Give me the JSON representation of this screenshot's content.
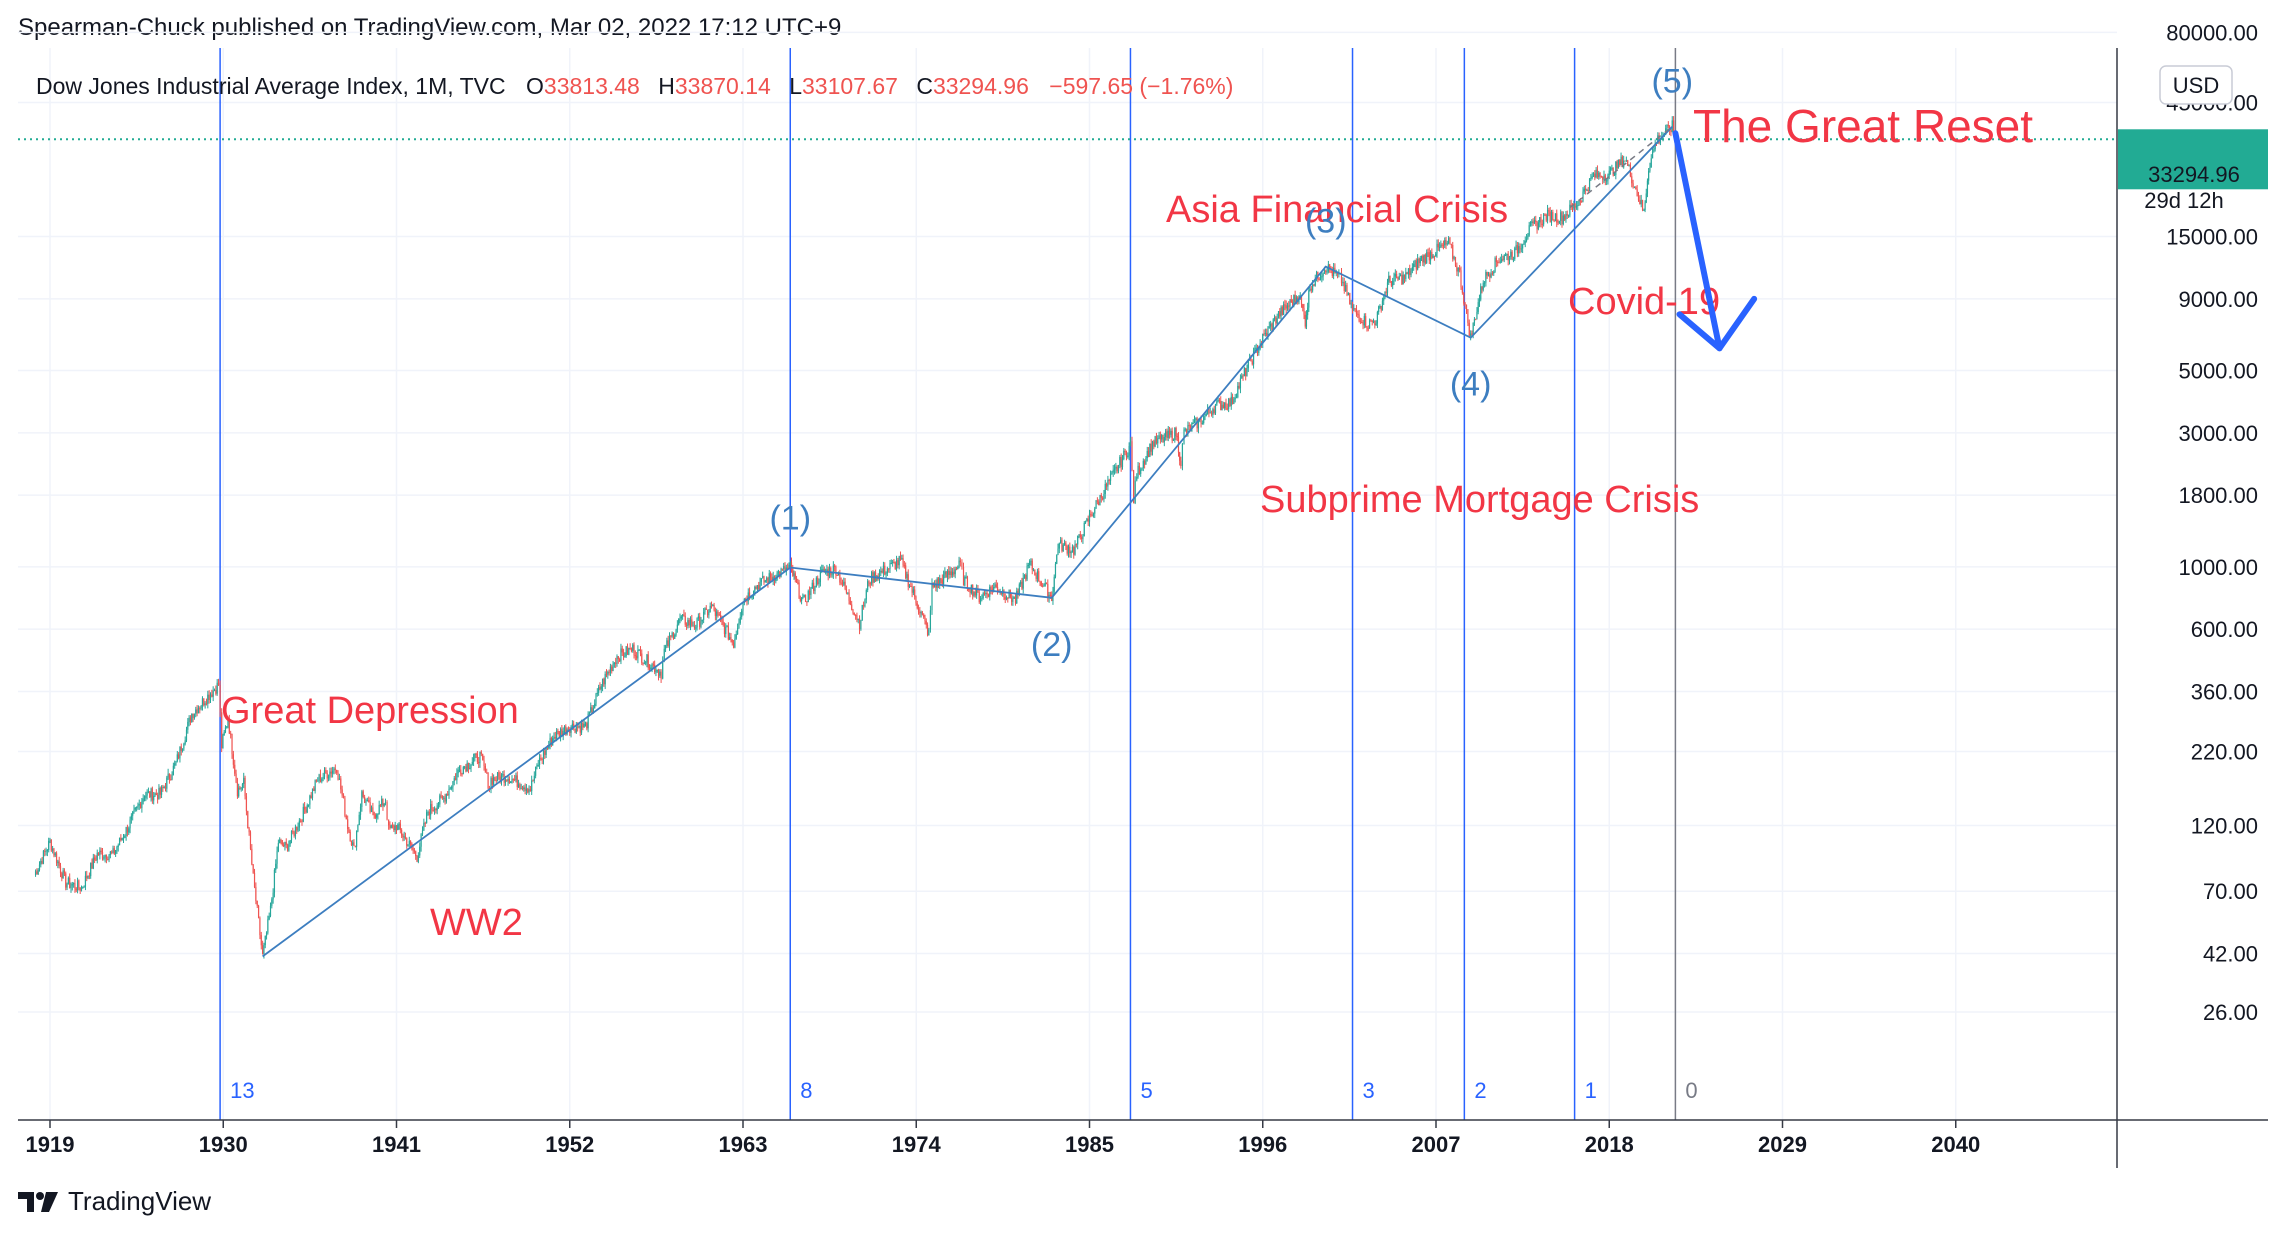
{
  "publish_line": "Spearman-Chuck published on TradingView.com, Mar 02, 2022 17:12 UTC+9",
  "brand": {
    "name": "TradingView"
  },
  "header": {
    "symbol": "Dow Jones Industrial Average Index, 1M, TVC",
    "o_label": "O",
    "o_value": "33813.48",
    "h_label": "H",
    "h_value": "33870.14",
    "l_label": "L",
    "l_value": "33107.67",
    "c_label": "C",
    "c_value": "33294.96",
    "change": "−597.65 (−1.76%)"
  },
  "currency": "USD",
  "price_tag": {
    "value": "33294.96",
    "countdown": "29d 12h"
  },
  "colors": {
    "background": "#ffffff",
    "up": "#26a69a",
    "down": "#ef5350",
    "annotation": "#f23645",
    "cycle_line": "#2962ff",
    "wave_label": "#3d7ec0",
    "price_tag": "#22ab94",
    "arrow": "#2962ff",
    "grid": "#f0f3fa"
  },
  "chart_data": {
    "type": "candlestick",
    "title": "Dow Jones Industrial Average Index, 1M, TVC",
    "y_scale": "log",
    "x_range": [
      1917.5,
      2049
    ],
    "y_range": [
      20,
      90000
    ],
    "x_ticks": [
      "1919",
      "1930",
      "1941",
      "1952",
      "1963",
      "1974",
      "1985",
      "1996",
      "2007",
      "2018",
      "2029",
      "2040"
    ],
    "y_ticks": [
      "80000.00",
      "45000.00",
      "15000.00",
      "9000.00",
      "5000.00",
      "3000.00",
      "1800.00",
      "1000.00",
      "600.00",
      "360.00",
      "220.00",
      "120.00",
      "70.00",
      "42.00",
      "26.00"
    ],
    "grid": true,
    "last_close": 33294.96,
    "series": [
      {
        "kind": "monthly-ohlc-approx",
        "points": [
          [
            1918,
            80
          ],
          [
            1919,
            105
          ],
          [
            1920,
            75
          ],
          [
            1921,
            72
          ],
          [
            1922,
            95
          ],
          [
            1923,
            95
          ],
          [
            1924,
            120
          ],
          [
            1925,
            155
          ],
          [
            1926,
            155
          ],
          [
            1927,
            200
          ],
          [
            1928,
            300
          ],
          [
            1929.7,
            381
          ],
          [
            1929.9,
            230
          ],
          [
            1930.3,
            290
          ],
          [
            1930.9,
            160
          ],
          [
            1931.3,
            170
          ],
          [
            1931.9,
            78
          ],
          [
            1932.5,
            41
          ],
          [
            1933,
            60
          ],
          [
            1933.5,
            105
          ],
          [
            1934,
            100
          ],
          [
            1935,
            130
          ],
          [
            1936,
            175
          ],
          [
            1937.2,
            194
          ],
          [
            1937.9,
            120
          ],
          [
            1938.3,
            98
          ],
          [
            1938.8,
            155
          ],
          [
            1939.5,
            130
          ],
          [
            1940.3,
            148
          ],
          [
            1940.5,
            115
          ],
          [
            1941,
            120
          ],
          [
            1942.3,
            93
          ],
          [
            1943,
            135
          ],
          [
            1944,
            150
          ],
          [
            1945,
            190
          ],
          [
            1946.3,
            212
          ],
          [
            1946.9,
            165
          ],
          [
            1947,
            175
          ],
          [
            1948,
            180
          ],
          [
            1949.5,
            162
          ],
          [
            1950,
            200
          ],
          [
            1951,
            250
          ],
          [
            1952,
            270
          ],
          [
            1953,
            270
          ],
          [
            1954,
            380
          ],
          [
            1955,
            480
          ],
          [
            1956,
            510
          ],
          [
            1957.8,
            420
          ],
          [
            1958,
            500
          ],
          [
            1959,
            650
          ],
          [
            1960,
            620
          ],
          [
            1961,
            720
          ],
          [
            1962.4,
            535
          ],
          [
            1963,
            760
          ],
          [
            1964,
            870
          ],
          [
            1966.0,
            995
          ],
          [
            1966.8,
            744
          ],
          [
            1968,
            950
          ],
          [
            1968.9,
            985
          ],
          [
            1970.4,
            631
          ],
          [
            1971,
            900
          ],
          [
            1973.0,
            1051
          ],
          [
            1974.8,
            577
          ],
          [
            1975,
            850
          ],
          [
            1976.8,
            1014
          ],
          [
            1977,
            900
          ],
          [
            1978,
            780
          ],
          [
            1979,
            850
          ],
          [
            1980.3,
            760
          ],
          [
            1981.2,
            1024
          ],
          [
            1982.6,
            776
          ],
          [
            1983,
            1200
          ],
          [
            1984,
            1150
          ],
          [
            1985,
            1500
          ],
          [
            1986,
            1900
          ],
          [
            1987.6,
            2722
          ],
          [
            1987.8,
            1740
          ],
          [
            1988,
            2150
          ],
          [
            1989,
            2750
          ],
          [
            1990.5,
            2999
          ],
          [
            1990.8,
            2365
          ],
          [
            1991,
            3000
          ],
          [
            1992,
            3300
          ],
          [
            1993,
            3750
          ],
          [
            1994,
            3850
          ],
          [
            1995,
            5100
          ],
          [
            1996,
            6500
          ],
          [
            1997,
            7900
          ],
          [
            1998.3,
            9300
          ],
          [
            1998.7,
            7500
          ],
          [
            1999,
            10000
          ],
          [
            2000.0,
            11723
          ],
          [
            2001,
            10500
          ],
          [
            2001.7,
            8235
          ],
          [
            2002.7,
            7286
          ],
          [
            2003.2,
            7600
          ],
          [
            2004,
            10400
          ],
          [
            2005,
            10700
          ],
          [
            2006,
            12400
          ],
          [
            2007.8,
            14198
          ],
          [
            2008.5,
            11000
          ],
          [
            2009.2,
            6547
          ],
          [
            2010,
            10500
          ],
          [
            2011,
            12500
          ],
          [
            2012,
            13100
          ],
          [
            2013,
            16000
          ],
          [
            2014,
            17800
          ],
          [
            2015,
            17500
          ],
          [
            2016,
            19800
          ],
          [
            2017,
            24700
          ],
          [
            2018,
            25000
          ],
          [
            2019,
            28500
          ],
          [
            2020.2,
            18213
          ],
          [
            2020.5,
            26500
          ],
          [
            2021,
            33000
          ],
          [
            2022.0,
            36952
          ],
          [
            2022.17,
            33294.96
          ]
        ]
      }
    ],
    "cycle_lines": [
      {
        "year": 1929.8,
        "label": "13"
      },
      {
        "year": 1966.0,
        "label": "8"
      },
      {
        "year": 1987.6,
        "label": "5"
      },
      {
        "year": 2001.7,
        "label": "3"
      },
      {
        "year": 2008.8,
        "label": "2"
      },
      {
        "year": 2015.8,
        "label": "1"
      },
      {
        "year": 2022.2,
        "label": "0"
      }
    ],
    "wave_lines": [
      [
        [
          1932.5,
          41
        ],
        [
          1966.0,
          995
        ],
        [
          1982.6,
          776
        ],
        [
          2000.0,
          11723
        ],
        [
          2009.2,
          6547
        ],
        [
          2022.0,
          36952
        ]
      ]
    ],
    "wave_labels": [
      {
        "label": "(1)",
        "year": 1966.0,
        "value": 995
      },
      {
        "label": "(2)",
        "year": 1982.6,
        "value": 776
      },
      {
        "label": "(3)",
        "year": 2000.0,
        "value": 11723
      },
      {
        "label": "(4)",
        "year": 2009.2,
        "value": 6547
      },
      {
        "label": "(5)",
        "year": 2022.0,
        "value": 36952
      }
    ],
    "annotations": [
      "Great Depression",
      "WW2",
      "Asia Financial Crisis",
      "Subprime Mortgage Crisis",
      "Covid-19",
      "The Great Reset"
    ],
    "projection": [
      [
        2022.2,
        35000
      ],
      [
        2025.0,
        6000
      ],
      [
        2027.2,
        9000
      ]
    ]
  }
}
